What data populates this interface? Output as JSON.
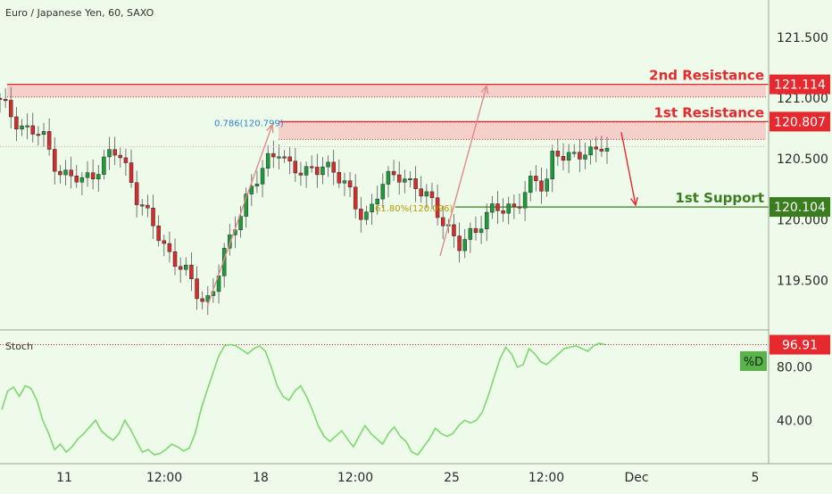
{
  "header": {
    "title": "Euro / Japanese Yen, 60, SAXO"
  },
  "colors": {
    "background": "#eefbea",
    "resistance": "#e5292f",
    "resistance_zone": "#f6c8c4",
    "support": "#3a7d1e",
    "candle_up": "#1c9c3a",
    "candle_down": "#d62c2c",
    "stoch_line": "#7dd86e",
    "fib_label": "#2e83c9",
    "fib_618_label": "#b89a00"
  },
  "chart_data": [
    {
      "type": "candlestick",
      "title": "Euro / Japanese Yen, 60, SAXO",
      "ylim": [
        119.15,
        121.75
      ],
      "y_ticks": [
        "121.500",
        "121.000",
        "120.500",
        "120.000",
        "119.500"
      ],
      "x_ticks": [
        "11",
        "12:00",
        "18",
        "12:00",
        "25",
        "12:00",
        "Dec",
        "5"
      ],
      "levels": [
        {
          "name": "2nd Resistance",
          "value": 121.114,
          "label": "121.114",
          "kind": "resistance",
          "zone": [
            121.01,
            121.12
          ]
        },
        {
          "name": "1st Resistance",
          "value": 120.807,
          "label": "120.807",
          "kind": "resistance",
          "zone": [
            120.66,
            120.81
          ]
        },
        {
          "name": "1st Support",
          "value": 120.104,
          "label": "120.104",
          "kind": "support"
        }
      ],
      "annotations": [
        {
          "text": "0.786(120.799)",
          "value": 120.799
        },
        {
          "text": "61.80%(120.096)",
          "value": 120.096
        }
      ],
      "price_path": [
        121.0,
        120.95,
        120.9,
        120.85,
        120.8,
        120.75,
        120.72,
        120.7,
        120.66,
        120.55,
        120.45,
        120.38,
        120.35,
        120.33,
        120.3,
        120.35,
        120.4,
        120.45,
        120.5,
        120.55,
        120.53,
        120.45,
        120.35,
        120.2,
        120.1,
        120.0,
        119.9,
        119.8,
        119.75,
        119.7,
        119.62,
        119.55,
        119.45,
        119.35,
        119.32,
        119.4,
        119.55,
        119.7,
        119.8,
        119.95,
        120.1,
        120.25,
        120.32,
        120.38,
        120.45,
        120.5,
        120.58,
        120.52,
        120.45,
        120.4,
        120.35,
        120.38,
        120.42,
        120.48,
        120.45,
        120.38,
        120.3,
        120.25,
        120.15,
        120.08,
        120.05,
        120.1,
        120.2,
        120.3,
        120.35,
        120.4,
        120.38,
        120.3,
        120.25,
        120.2,
        120.18,
        120.15,
        120.05,
        119.95,
        119.85,
        119.75,
        119.82,
        119.9,
        119.95,
        120.02,
        120.05,
        120.08,
        120.06,
        120.1,
        120.12,
        120.18,
        120.25,
        120.3,
        120.28,
        120.25,
        120.55,
        120.58,
        120.52,
        120.48,
        120.5,
        120.55,
        120.58,
        120.6,
        120.62,
        120.55
      ],
      "candle_range": [
        0,
        680
      ]
    },
    {
      "type": "line",
      "title": "Stoch",
      "ylim": [
        10,
        104
      ],
      "y_ticks": [
        "80.00",
        "40.00"
      ],
      "last_value_label": "96.91",
      "series_label": "%D",
      "series": [
        {
          "values": [
            48,
            62,
            65,
            58,
            66,
            64,
            55,
            40,
            30,
            18,
            22,
            16,
            20,
            26,
            30,
            35,
            40,
            32,
            28,
            25,
            30,
            40,
            33,
            24,
            16,
            18,
            14,
            15,
            18,
            22,
            20,
            17,
            19,
            30,
            48,
            62,
            75,
            88,
            96,
            97,
            96,
            93,
            90,
            94,
            96,
            92,
            80,
            66,
            58,
            55,
            62,
            66,
            58,
            48,
            36,
            28,
            24,
            28,
            32,
            26,
            20,
            28,
            36,
            30,
            26,
            22,
            30,
            35,
            28,
            24,
            16,
            14,
            20,
            26,
            34,
            30,
            28,
            30,
            36,
            40,
            38,
            40,
            46,
            58,
            72,
            86,
            95,
            90,
            80,
            82,
            94,
            90,
            84,
            82,
            86,
            90,
            94,
            95,
            96,
            94,
            92,
            96,
            98,
            96.9
          ]
        }
      ]
    }
  ]
}
